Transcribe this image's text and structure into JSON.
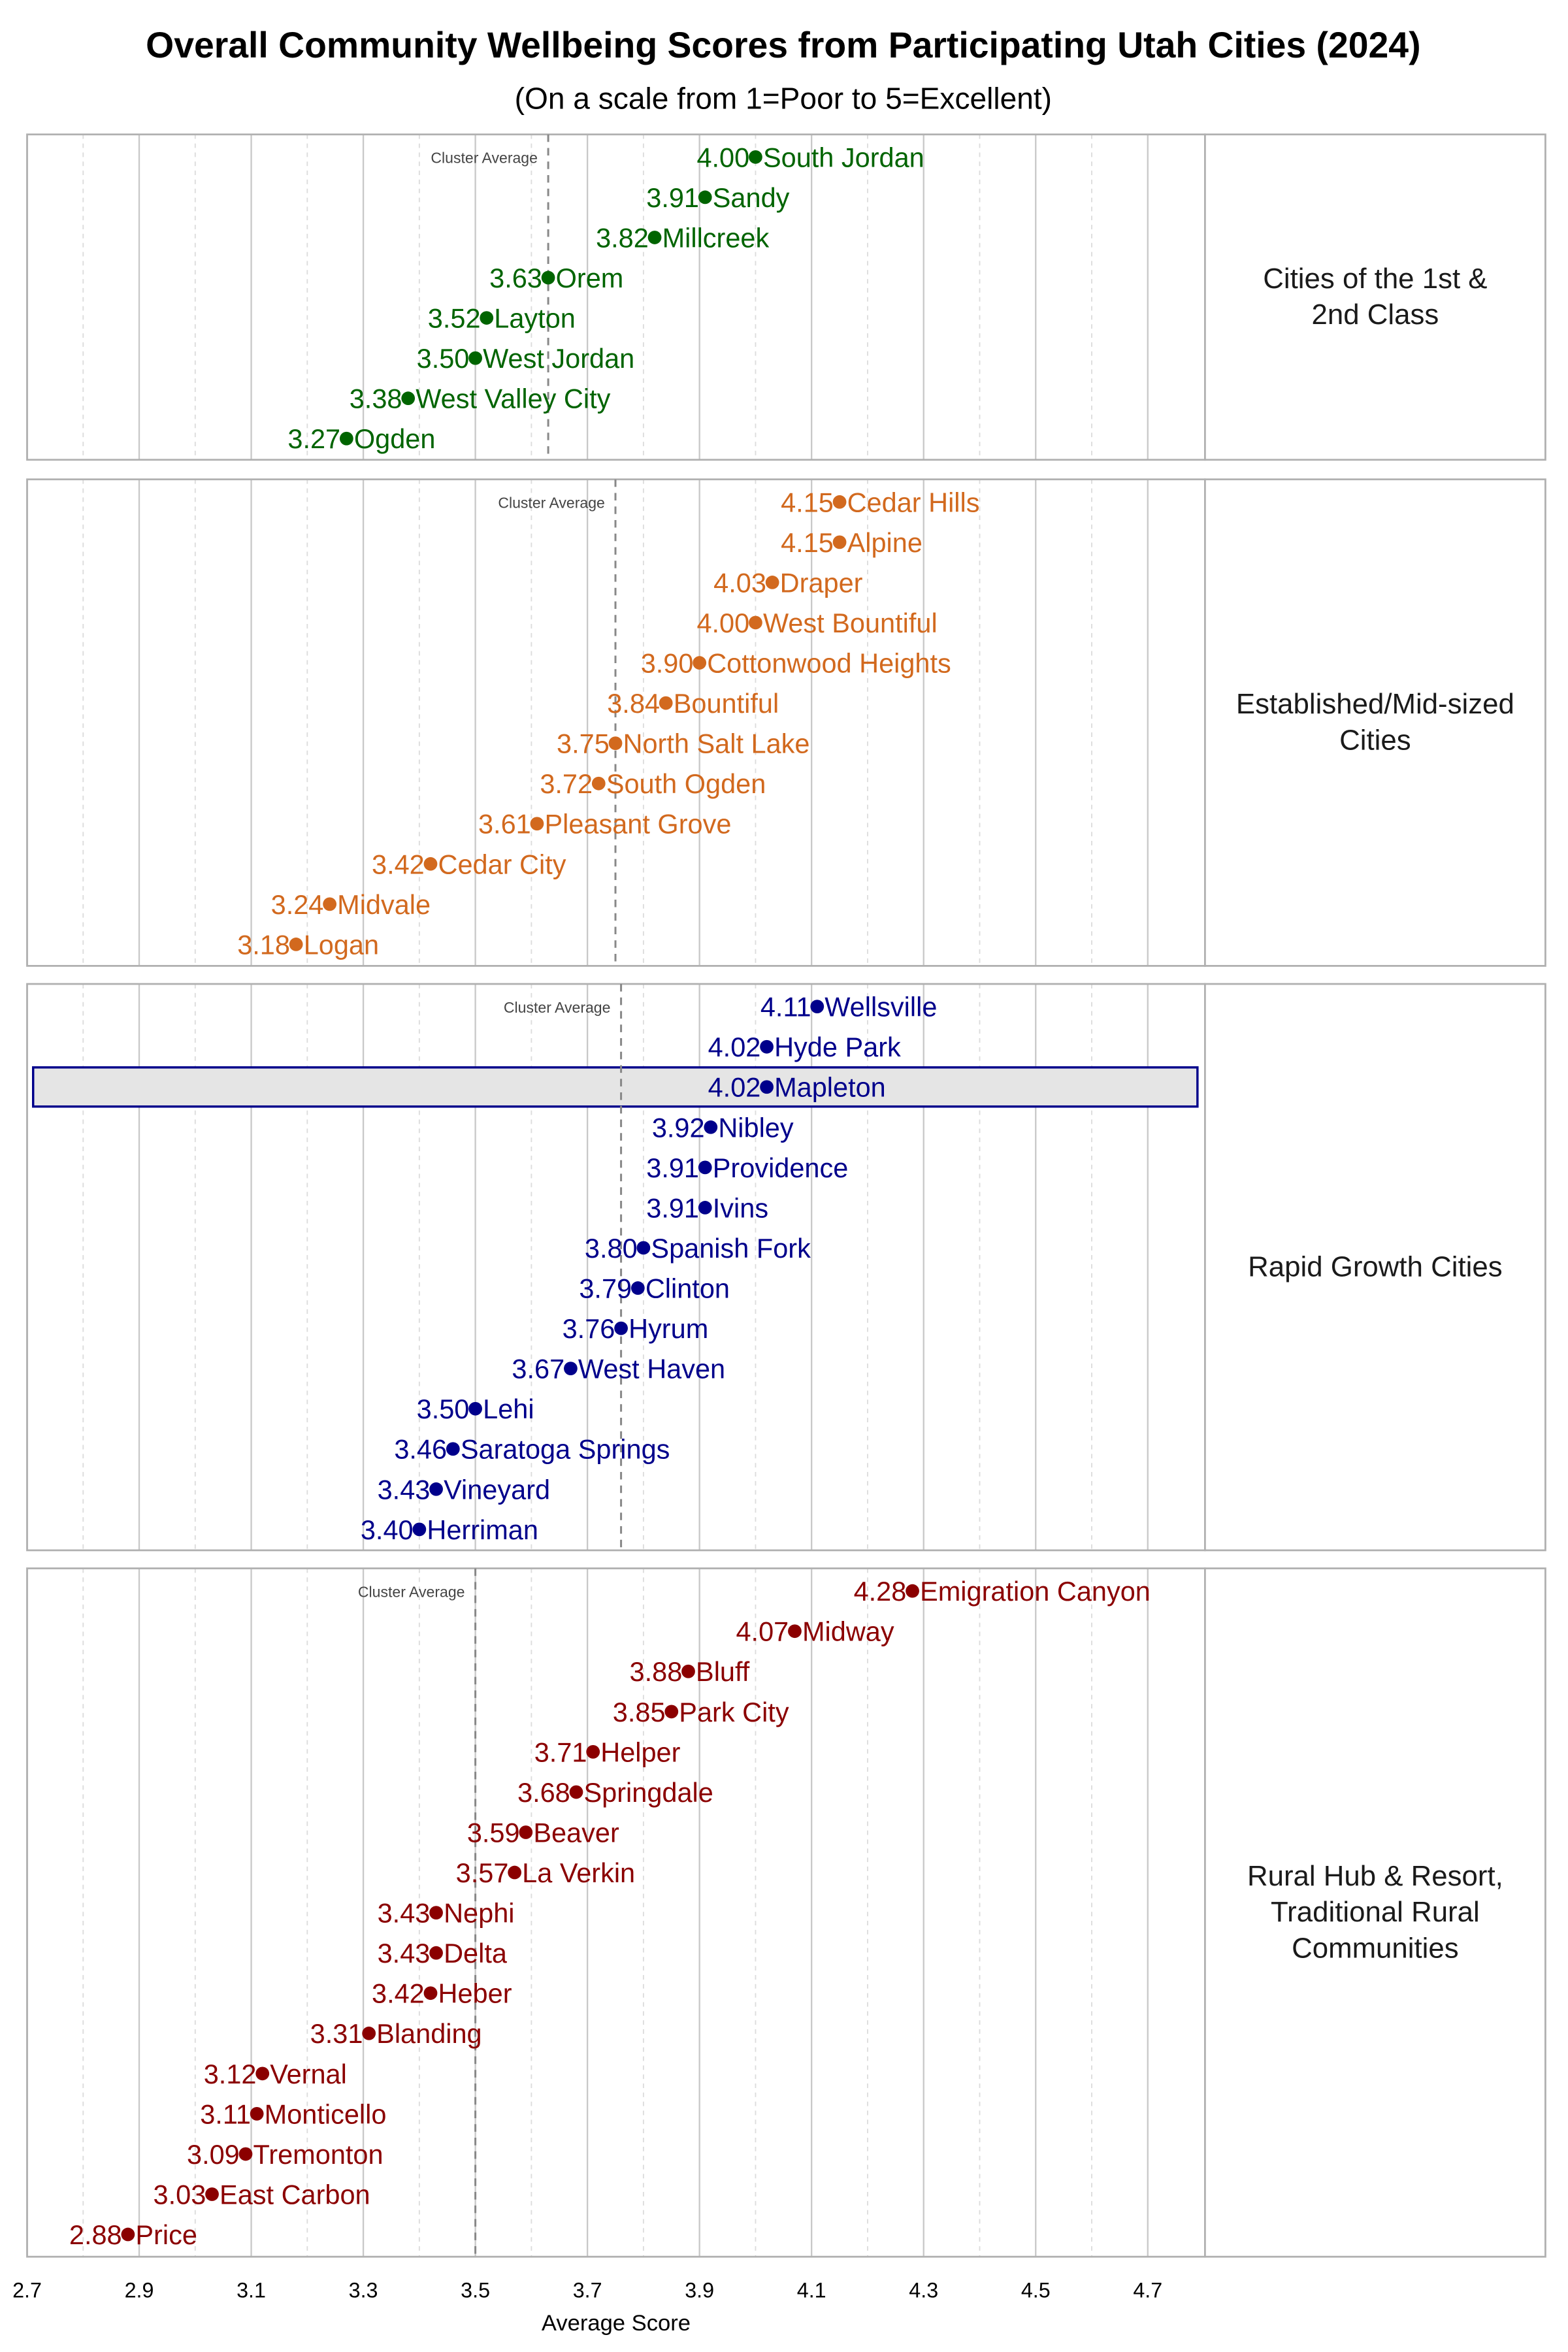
{
  "chart_data": {
    "type": "scatter",
    "title": "Overall Community Wellbeing Scores from Participating Utah Cities (2024)",
    "subtitle": "(On a scale from 1=Poor to 5=Excellent)",
    "xlabel": "Average Score",
    "xlim": [
      2.7,
      4.8
    ],
    "x_ticks": [
      "2.7",
      "2.9",
      "3.1",
      "3.3",
      "3.5",
      "3.7",
      "3.9",
      "4.1",
      "4.3",
      "4.5",
      "4.7"
    ],
    "grid": true,
    "average_label": "Cluster Average",
    "panels": [
      {
        "label": [
          "Cities of the 1st &",
          "2nd Class"
        ],
        "color": "#006400",
        "cluster_average": 3.63,
        "points": [
          {
            "city": "South Jordan",
            "value": 4.0,
            "label": "4.00"
          },
          {
            "city": "Sandy",
            "value": 3.91,
            "label": "3.91"
          },
          {
            "city": "Millcreek",
            "value": 3.82,
            "label": "3.82"
          },
          {
            "city": "Orem",
            "value": 3.63,
            "label": "3.63"
          },
          {
            "city": "Layton",
            "value": 3.52,
            "label": "3.52"
          },
          {
            "city": "West Jordan",
            "value": 3.5,
            "label": "3.50"
          },
          {
            "city": "West Valley City",
            "value": 3.38,
            "label": "3.38"
          },
          {
            "city": "Ogden",
            "value": 3.27,
            "label": "3.27"
          }
        ]
      },
      {
        "label": [
          "Established/Mid-sized",
          "Cities"
        ],
        "color": "#d2691e",
        "cluster_average": 3.75,
        "points": [
          {
            "city": "Cedar Hills",
            "value": 4.15,
            "label": "4.15"
          },
          {
            "city": "Alpine",
            "value": 4.15,
            "label": "4.15"
          },
          {
            "city": "Draper",
            "value": 4.03,
            "label": "4.03"
          },
          {
            "city": "West Bountiful",
            "value": 4.0,
            "label": "4.00"
          },
          {
            "city": "Cottonwood Heights",
            "value": 3.9,
            "label": "3.90"
          },
          {
            "city": "Bountiful",
            "value": 3.84,
            "label": "3.84"
          },
          {
            "city": "North Salt Lake",
            "value": 3.75,
            "label": "3.75"
          },
          {
            "city": "South Ogden",
            "value": 3.72,
            "label": "3.72"
          },
          {
            "city": "Pleasant Grove",
            "value": 3.61,
            "label": "3.61"
          },
          {
            "city": "Cedar City",
            "value": 3.42,
            "label": "3.42"
          },
          {
            "city": "Midvale",
            "value": 3.24,
            "label": "3.24"
          },
          {
            "city": "Logan",
            "value": 3.18,
            "label": "3.18"
          }
        ]
      },
      {
        "label": [
          "Rapid Growth Cities"
        ],
        "color": "#00008b",
        "cluster_average": 3.76,
        "highlight": "Mapleton",
        "points": [
          {
            "city": "Wellsville",
            "value": 4.11,
            "label": "4.11"
          },
          {
            "city": "Hyde Park",
            "value": 4.02,
            "label": "4.02"
          },
          {
            "city": "Mapleton",
            "value": 4.02,
            "label": "4.02"
          },
          {
            "city": "Nibley",
            "value": 3.92,
            "label": "3.92"
          },
          {
            "city": "Providence",
            "value": 3.91,
            "label": "3.91"
          },
          {
            "city": "Ivins",
            "value": 3.91,
            "label": "3.91"
          },
          {
            "city": "Spanish Fork",
            "value": 3.8,
            "label": "3.80"
          },
          {
            "city": "Clinton",
            "value": 3.79,
            "label": "3.79"
          },
          {
            "city": "Hyrum",
            "value": 3.76,
            "label": "3.76"
          },
          {
            "city": "West Haven",
            "value": 3.67,
            "label": "3.67"
          },
          {
            "city": "Lehi",
            "value": 3.5,
            "label": "3.50"
          },
          {
            "city": "Saratoga Springs",
            "value": 3.46,
            "label": "3.46"
          },
          {
            "city": "Vineyard",
            "value": 3.43,
            "label": "3.43"
          },
          {
            "city": "Herriman",
            "value": 3.4,
            "label": "3.40"
          }
        ]
      },
      {
        "label": [
          "Rural Hub & Resort,",
          "Traditional Rural",
          "Communities"
        ],
        "color": "#8b0000",
        "cluster_average": 3.5,
        "points": [
          {
            "city": "Emigration Canyon",
            "value": 4.28,
            "label": "4.28"
          },
          {
            "city": "Midway",
            "value": 4.07,
            "label": "4.07"
          },
          {
            "city": "Bluff",
            "value": 3.88,
            "label": "3.88"
          },
          {
            "city": "Park City",
            "value": 3.85,
            "label": "3.85"
          },
          {
            "city": "Helper",
            "value": 3.71,
            "label": "3.71"
          },
          {
            "city": "Springdale",
            "value": 3.68,
            "label": "3.68"
          },
          {
            "city": "Beaver",
            "value": 3.59,
            "label": "3.59"
          },
          {
            "city": "La Verkin",
            "value": 3.57,
            "label": "3.57"
          },
          {
            "city": "Nephi",
            "value": 3.43,
            "label": "3.43"
          },
          {
            "city": "Delta",
            "value": 3.43,
            "label": "3.43"
          },
          {
            "city": "Heber",
            "value": 3.42,
            "label": "3.42"
          },
          {
            "city": "Blanding",
            "value": 3.31,
            "label": "3.31"
          },
          {
            "city": "Vernal",
            "value": 3.12,
            "label": "3.12"
          },
          {
            "city": "Monticello",
            "value": 3.11,
            "label": "3.11"
          },
          {
            "city": "Tremonton",
            "value": 3.09,
            "label": "3.09"
          },
          {
            "city": "East Carbon",
            "value": 3.03,
            "label": "3.03"
          },
          {
            "city": "Price",
            "value": 2.88,
            "label": "2.88"
          }
        ]
      }
    ]
  }
}
